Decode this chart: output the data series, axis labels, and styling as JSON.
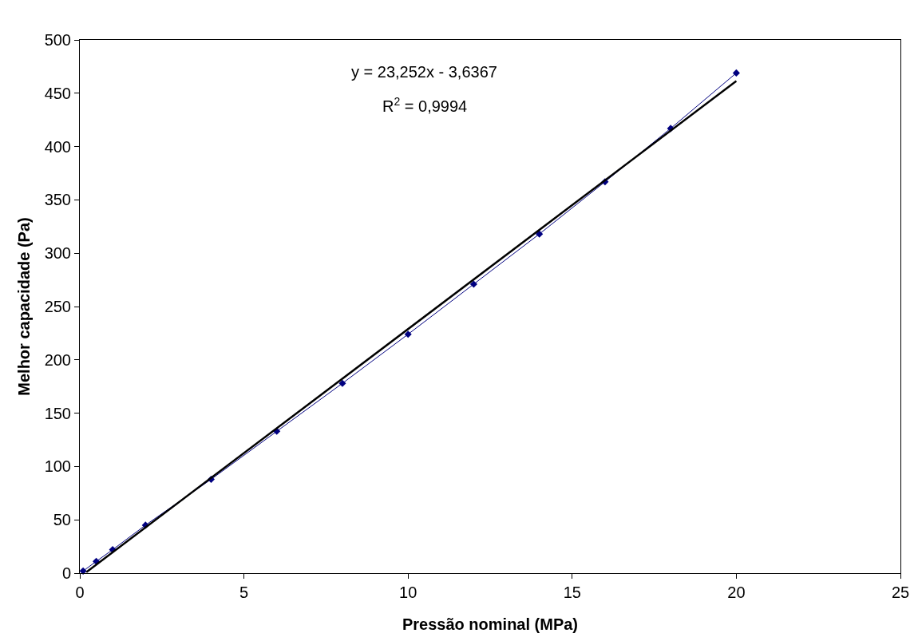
{
  "chart_data": {
    "type": "line",
    "xlabel": "Pressão nominal (MPa)",
    "ylabel": "Melhor capacidade (Pa)",
    "x": [
      0.1,
      0.5,
      1,
      2,
      4,
      6,
      8,
      10,
      12,
      14,
      16,
      18,
      20
    ],
    "series": [
      {
        "color": "#000080",
        "values": [
          2,
          11,
          22,
          45,
          88,
          133,
          178,
          224,
          271,
          318,
          367,
          417,
          469
        ],
        "marker": "diamond"
      },
      {
        "type": "line",
        "color": "#000000",
        "x": [
          0.2,
          20
        ],
        "values": [
          1,
          461.4
        ],
        "marker": "none"
      }
    ],
    "annotations": [
      "y = 23,252x - 3,6367",
      "R$^{2}$ = 0,9994"
    ],
    "xlim": [
      0,
      25
    ],
    "xticks": [
      0,
      5,
      10,
      15,
      20,
      25
    ],
    "ylim": [
      0,
      500
    ],
    "yticks": [
      0,
      50,
      100,
      150,
      200,
      250,
      300,
      350,
      400,
      450,
      500
    ]
  }
}
